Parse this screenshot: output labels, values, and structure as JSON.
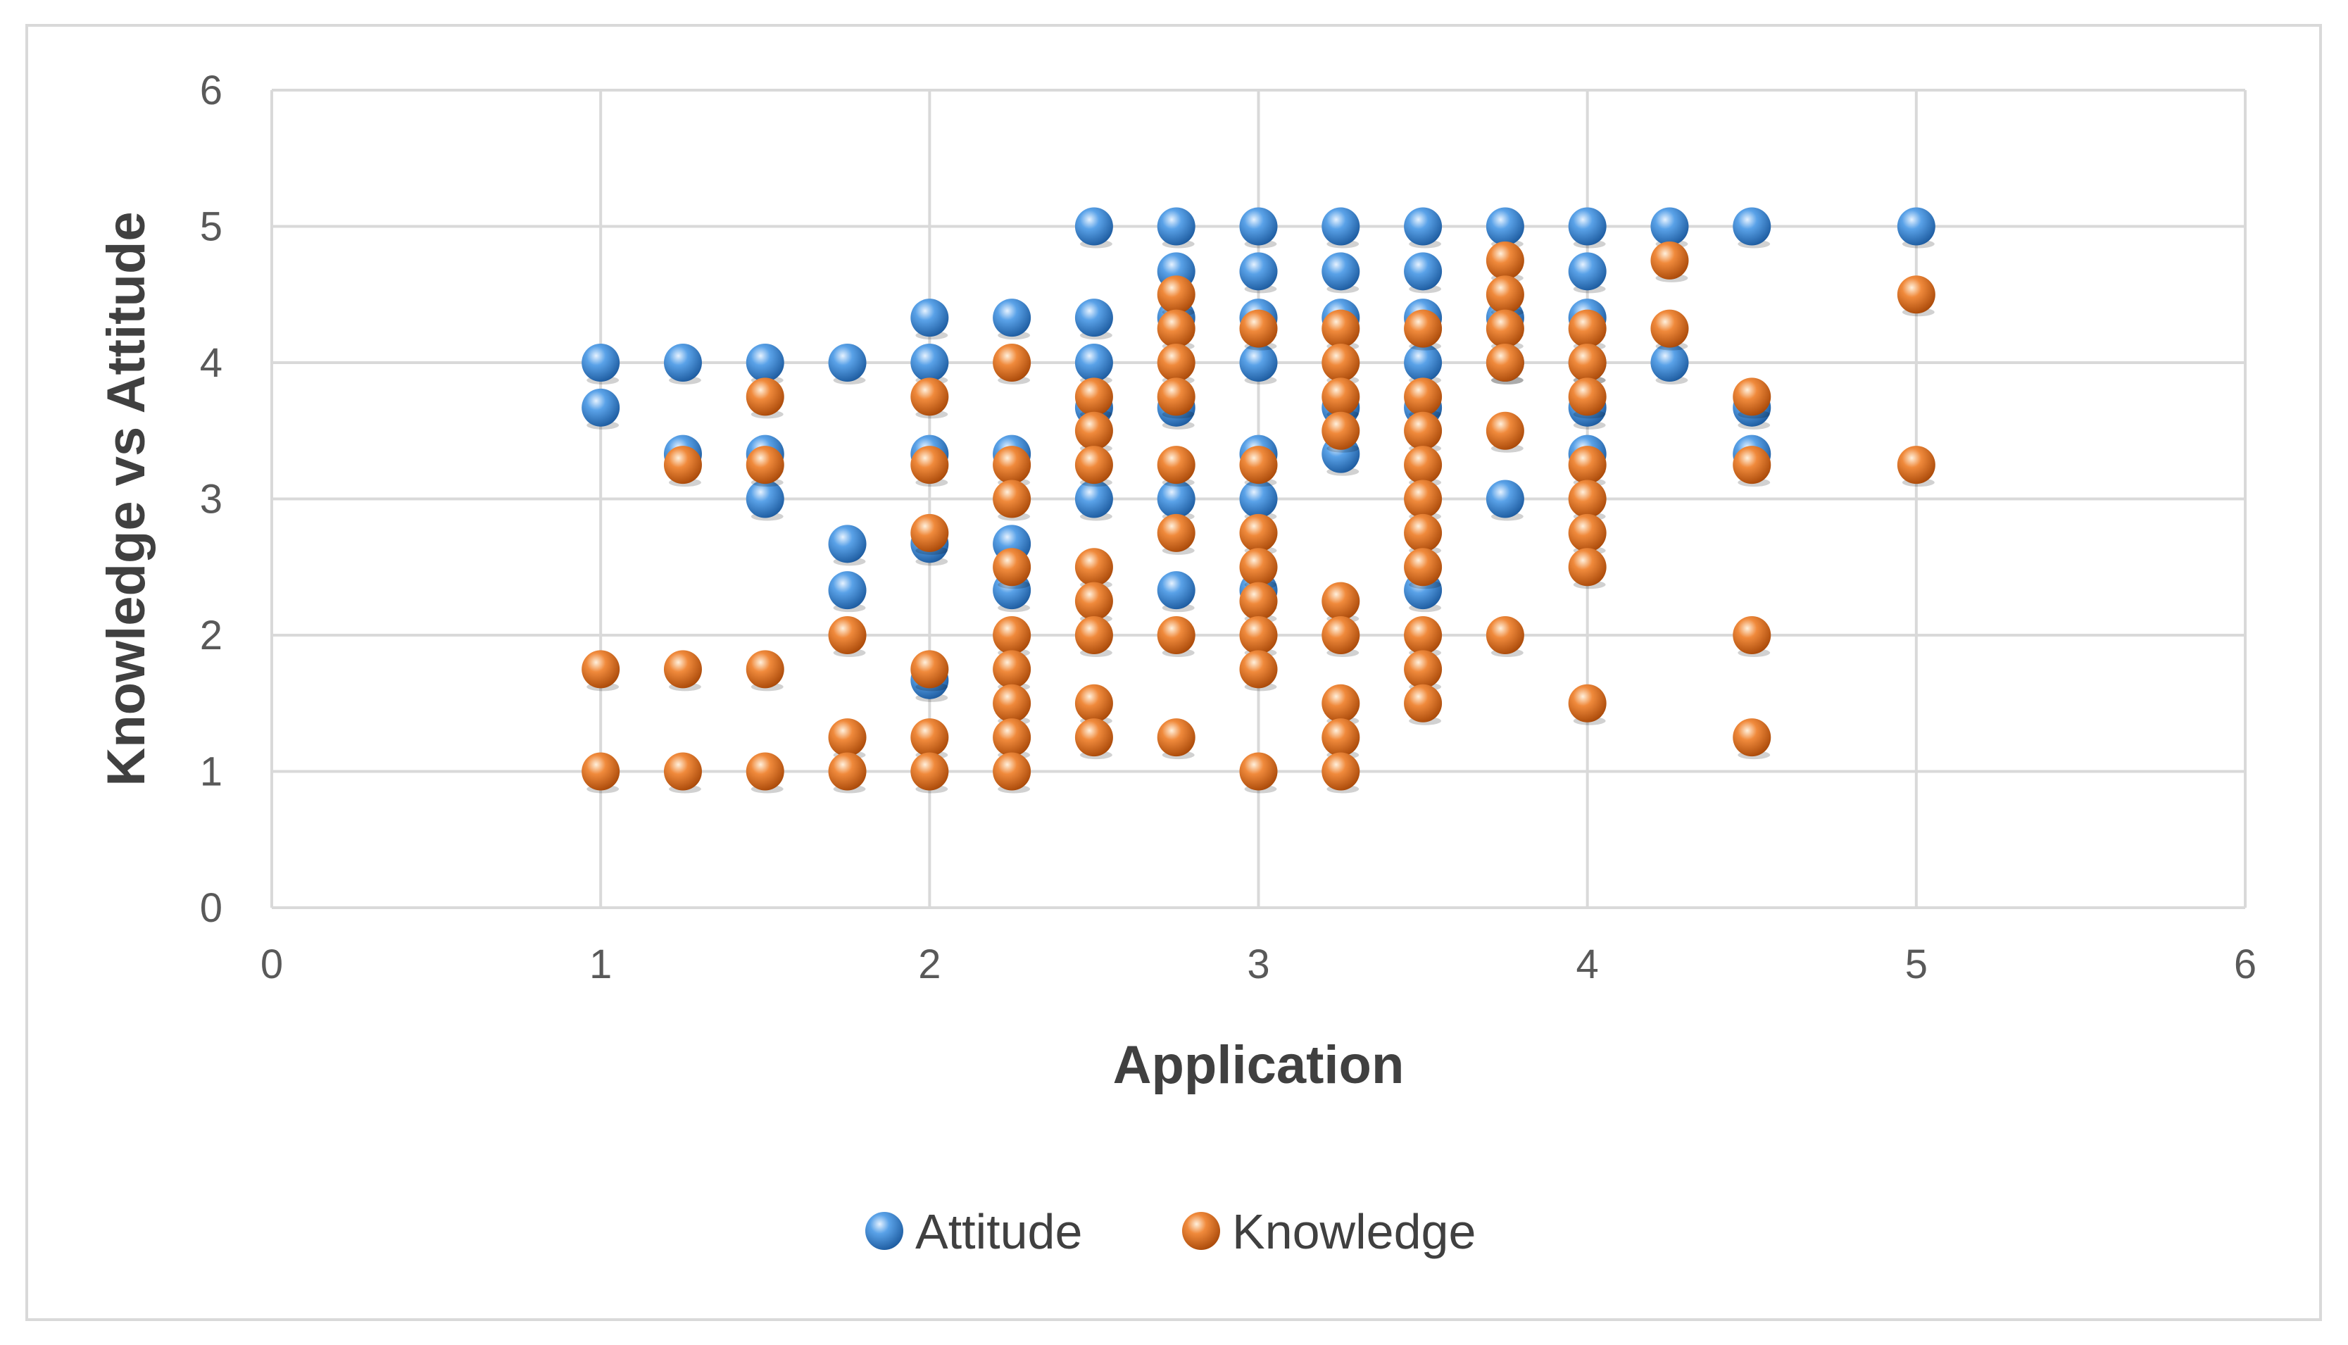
{
  "chart_data": {
    "type": "scatter",
    "title": "",
    "xlabel": "Application",
    "ylabel": "Knowledge vs Attitude",
    "xlim": [
      0,
      6
    ],
    "ylim": [
      0,
      6
    ],
    "xticks": [
      "0",
      "1",
      "2",
      "3",
      "4",
      "5",
      "6"
    ],
    "yticks": [
      "0",
      "1",
      "2",
      "3",
      "4",
      "5",
      "6"
    ],
    "grid": true,
    "legend_position": "bottom",
    "series": [
      {
        "name": "Attitude",
        "color": "#4a90d9",
        "points": [
          [
            1,
            4
          ],
          [
            1,
            3.67
          ],
          [
            1.25,
            4
          ],
          [
            1.25,
            3.33
          ],
          [
            1.5,
            4
          ],
          [
            1.5,
            3.33
          ],
          [
            1.5,
            3
          ],
          [
            1.75,
            4
          ],
          [
            1.75,
            2.67
          ],
          [
            1.75,
            2.33
          ],
          [
            2,
            4.33
          ],
          [
            2,
            4
          ],
          [
            2,
            3.33
          ],
          [
            2,
            2.67
          ],
          [
            2,
            1.67
          ],
          [
            2.25,
            4.33
          ],
          [
            2.25,
            3.33
          ],
          [
            2.25,
            2.67
          ],
          [
            2.25,
            2.33
          ],
          [
            2.5,
            5
          ],
          [
            2.5,
            4.33
          ],
          [
            2.5,
            4
          ],
          [
            2.5,
            3.67
          ],
          [
            2.5,
            3
          ],
          [
            2.75,
            5
          ],
          [
            2.75,
            4.67
          ],
          [
            2.75,
            4.33
          ],
          [
            2.75,
            3.67
          ],
          [
            2.75,
            3
          ],
          [
            2.75,
            2.33
          ],
          [
            3,
            5
          ],
          [
            3,
            4.67
          ],
          [
            3,
            4.33
          ],
          [
            3,
            4
          ],
          [
            3,
            3.33
          ],
          [
            3,
            3
          ],
          [
            3,
            2.33
          ],
          [
            3.25,
            5
          ],
          [
            3.25,
            4.67
          ],
          [
            3.25,
            4.33
          ],
          [
            3.25,
            3.67
          ],
          [
            3.25,
            3.33
          ],
          [
            3.5,
            5
          ],
          [
            3.5,
            4.67
          ],
          [
            3.5,
            4.33
          ],
          [
            3.5,
            4
          ],
          [
            3.5,
            3.67
          ],
          [
            3.5,
            2.33
          ],
          [
            3.75,
            5
          ],
          [
            3.75,
            4.33
          ],
          [
            3.75,
            4
          ],
          [
            3.75,
            3
          ],
          [
            4,
            5
          ],
          [
            4,
            4.67
          ],
          [
            4,
            4.33
          ],
          [
            4,
            4
          ],
          [
            4,
            3.67
          ],
          [
            4,
            3.33
          ],
          [
            4.25,
            5
          ],
          [
            4.25,
            4
          ],
          [
            4.5,
            5
          ],
          [
            4.5,
            3.67
          ],
          [
            4.5,
            3.33
          ],
          [
            5,
            5
          ]
        ]
      },
      {
        "name": "Knowledge",
        "color": "#e8772e",
        "points": [
          [
            1,
            1.75
          ],
          [
            1,
            1
          ],
          [
            1.25,
            3.25
          ],
          [
            1.25,
            1.75
          ],
          [
            1.25,
            1
          ],
          [
            1.5,
            3.75
          ],
          [
            1.5,
            3.25
          ],
          [
            1.5,
            1.75
          ],
          [
            1.5,
            1
          ],
          [
            1.75,
            2
          ],
          [
            1.75,
            1.25
          ],
          [
            1.75,
            1
          ],
          [
            2,
            3.75
          ],
          [
            2,
            3.25
          ],
          [
            2,
            2.75
          ],
          [
            2,
            1.75
          ],
          [
            2,
            1.25
          ],
          [
            2,
            1
          ],
          [
            2.25,
            4
          ],
          [
            2.25,
            3.25
          ],
          [
            2.25,
            3
          ],
          [
            2.25,
            2.5
          ],
          [
            2.25,
            2
          ],
          [
            2.25,
            1.75
          ],
          [
            2.25,
            1.5
          ],
          [
            2.25,
            1.25
          ],
          [
            2.25,
            1
          ],
          [
            2.5,
            3.75
          ],
          [
            2.5,
            3.5
          ],
          [
            2.5,
            3.25
          ],
          [
            2.5,
            2.5
          ],
          [
            2.5,
            2.25
          ],
          [
            2.5,
            2
          ],
          [
            2.5,
            1.5
          ],
          [
            2.5,
            1.25
          ],
          [
            2.75,
            4.5
          ],
          [
            2.75,
            4.25
          ],
          [
            2.75,
            4
          ],
          [
            2.75,
            3.75
          ],
          [
            2.75,
            3.25
          ],
          [
            2.75,
            2.75
          ],
          [
            2.75,
            2
          ],
          [
            2.75,
            1.25
          ],
          [
            3,
            4.25
          ],
          [
            3,
            3.25
          ],
          [
            3,
            2.75
          ],
          [
            3,
            2.5
          ],
          [
            3,
            2.25
          ],
          [
            3,
            2
          ],
          [
            3,
            1.75
          ],
          [
            3,
            1
          ],
          [
            3.25,
            4.25
          ],
          [
            3.25,
            4
          ],
          [
            3.25,
            3.75
          ],
          [
            3.25,
            3.5
          ],
          [
            3.25,
            2.25
          ],
          [
            3.25,
            2
          ],
          [
            3.25,
            1.5
          ],
          [
            3.25,
            1.25
          ],
          [
            3.25,
            1
          ],
          [
            3.5,
            4.25
          ],
          [
            3.5,
            3.75
          ],
          [
            3.5,
            3.5
          ],
          [
            3.5,
            3.25
          ],
          [
            3.5,
            3
          ],
          [
            3.5,
            2.75
          ],
          [
            3.5,
            2.5
          ],
          [
            3.5,
            2
          ],
          [
            3.5,
            1.75
          ],
          [
            3.5,
            1.5
          ],
          [
            3.75,
            4.75
          ],
          [
            3.75,
            4.5
          ],
          [
            3.75,
            4.25
          ],
          [
            3.75,
            4
          ],
          [
            3.75,
            3.5
          ],
          [
            3.75,
            2
          ],
          [
            4,
            4.25
          ],
          [
            4,
            4
          ],
          [
            4,
            3.75
          ],
          [
            4,
            3.25
          ],
          [
            4,
            3
          ],
          [
            4,
            2.75
          ],
          [
            4,
            2.5
          ],
          [
            4,
            1.5
          ],
          [
            4.25,
            4.75
          ],
          [
            4.25,
            4.25
          ],
          [
            4.5,
            3.75
          ],
          [
            4.5,
            3.25
          ],
          [
            4.5,
            2
          ],
          [
            4.5,
            1.25
          ],
          [
            5,
            4.5
          ],
          [
            5,
            3.25
          ]
        ]
      }
    ]
  }
}
